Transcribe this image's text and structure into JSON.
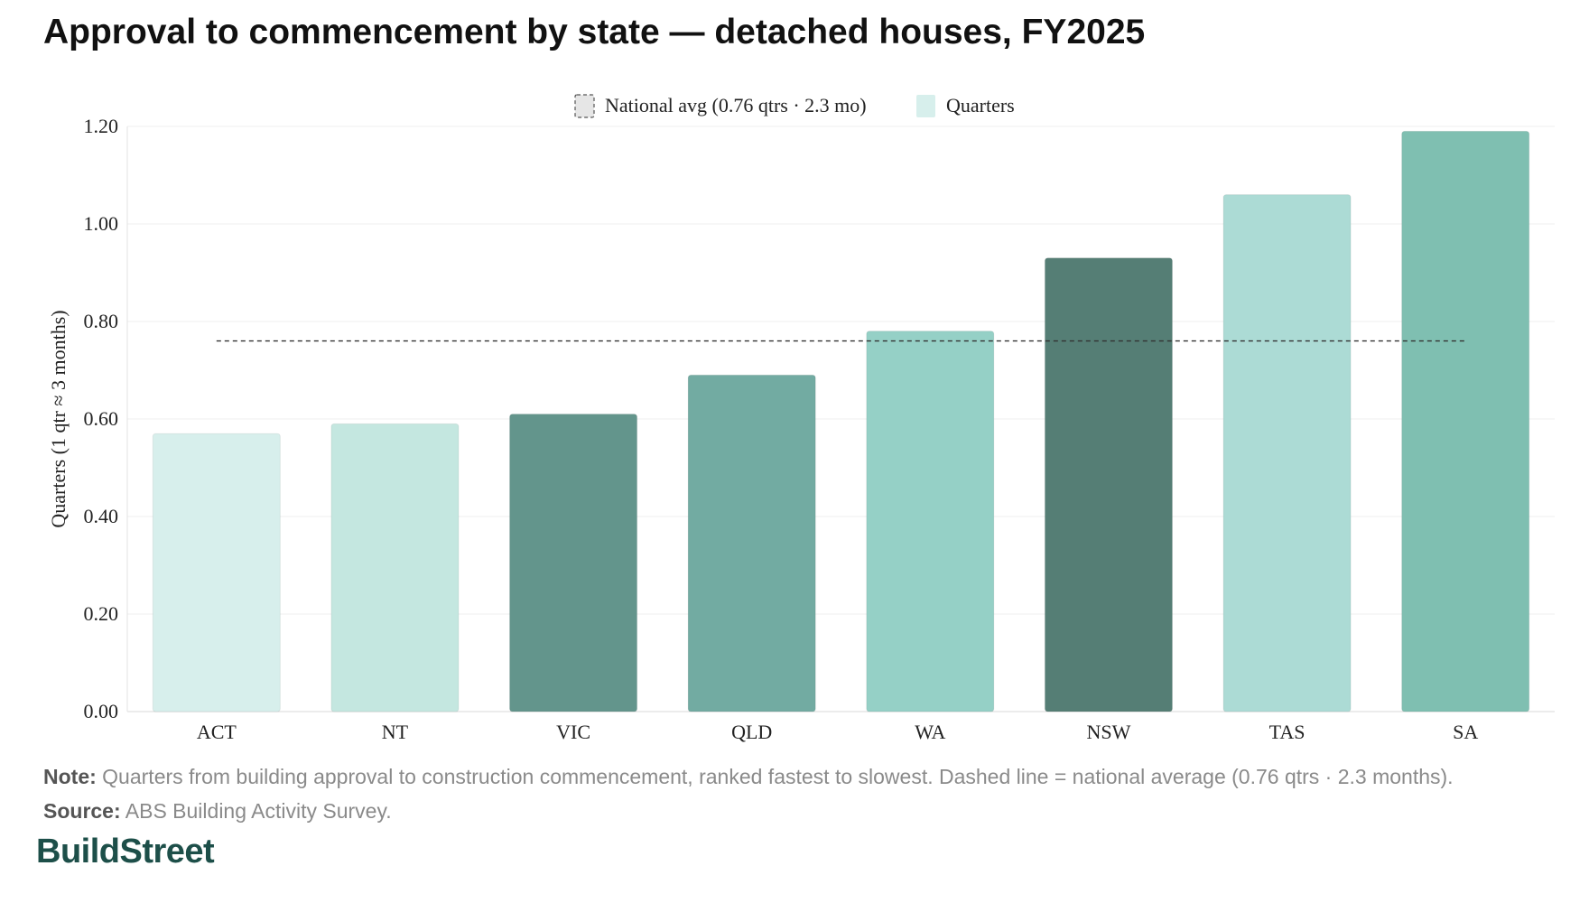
{
  "title": "Approval to commencement by state — detached houses, FY2025",
  "chart_data": {
    "type": "bar",
    "categories": [
      "ACT",
      "NT",
      "VIC",
      "QLD",
      "WA",
      "NSW",
      "TAS",
      "SA"
    ],
    "values": [
      0.57,
      0.59,
      0.61,
      0.69,
      0.78,
      0.93,
      1.06,
      1.19
    ],
    "colors": [
      "#d7efec",
      "#c4e7e0",
      "#63958c",
      "#72aba2",
      "#95d0c6",
      "#557e75",
      "#acdbd5",
      "#7fbfb1"
    ],
    "ylabel": "Quarters (1 qtr ≈ 3 months)",
    "ylim": [
      0,
      1.2
    ],
    "yticks": [
      "0.00",
      "0.20",
      "0.40",
      "0.60",
      "0.80",
      "1.00",
      "1.20"
    ],
    "grid": true,
    "legend_position": "top-center",
    "legend": [
      {
        "label": "National avg (0.76 qtrs · 2.3 mo)",
        "style": "dashed",
        "color": "#e6e6e6"
      },
      {
        "label": "Quarters",
        "style": "solid",
        "color": "#d7efec"
      }
    ],
    "reference_line": {
      "value": 0.76,
      "style": "dashed",
      "color": "#333333"
    }
  },
  "notes": {
    "note_label": "Note:",
    "note_text": "Quarters from building approval to construction commencement, ranked fastest to slowest. Dashed line = national average (0.76 qtrs · 2.3 months).",
    "source_label": "Source:",
    "source_text": "ABS Building Activity Survey."
  },
  "brand": "BuildStreet"
}
